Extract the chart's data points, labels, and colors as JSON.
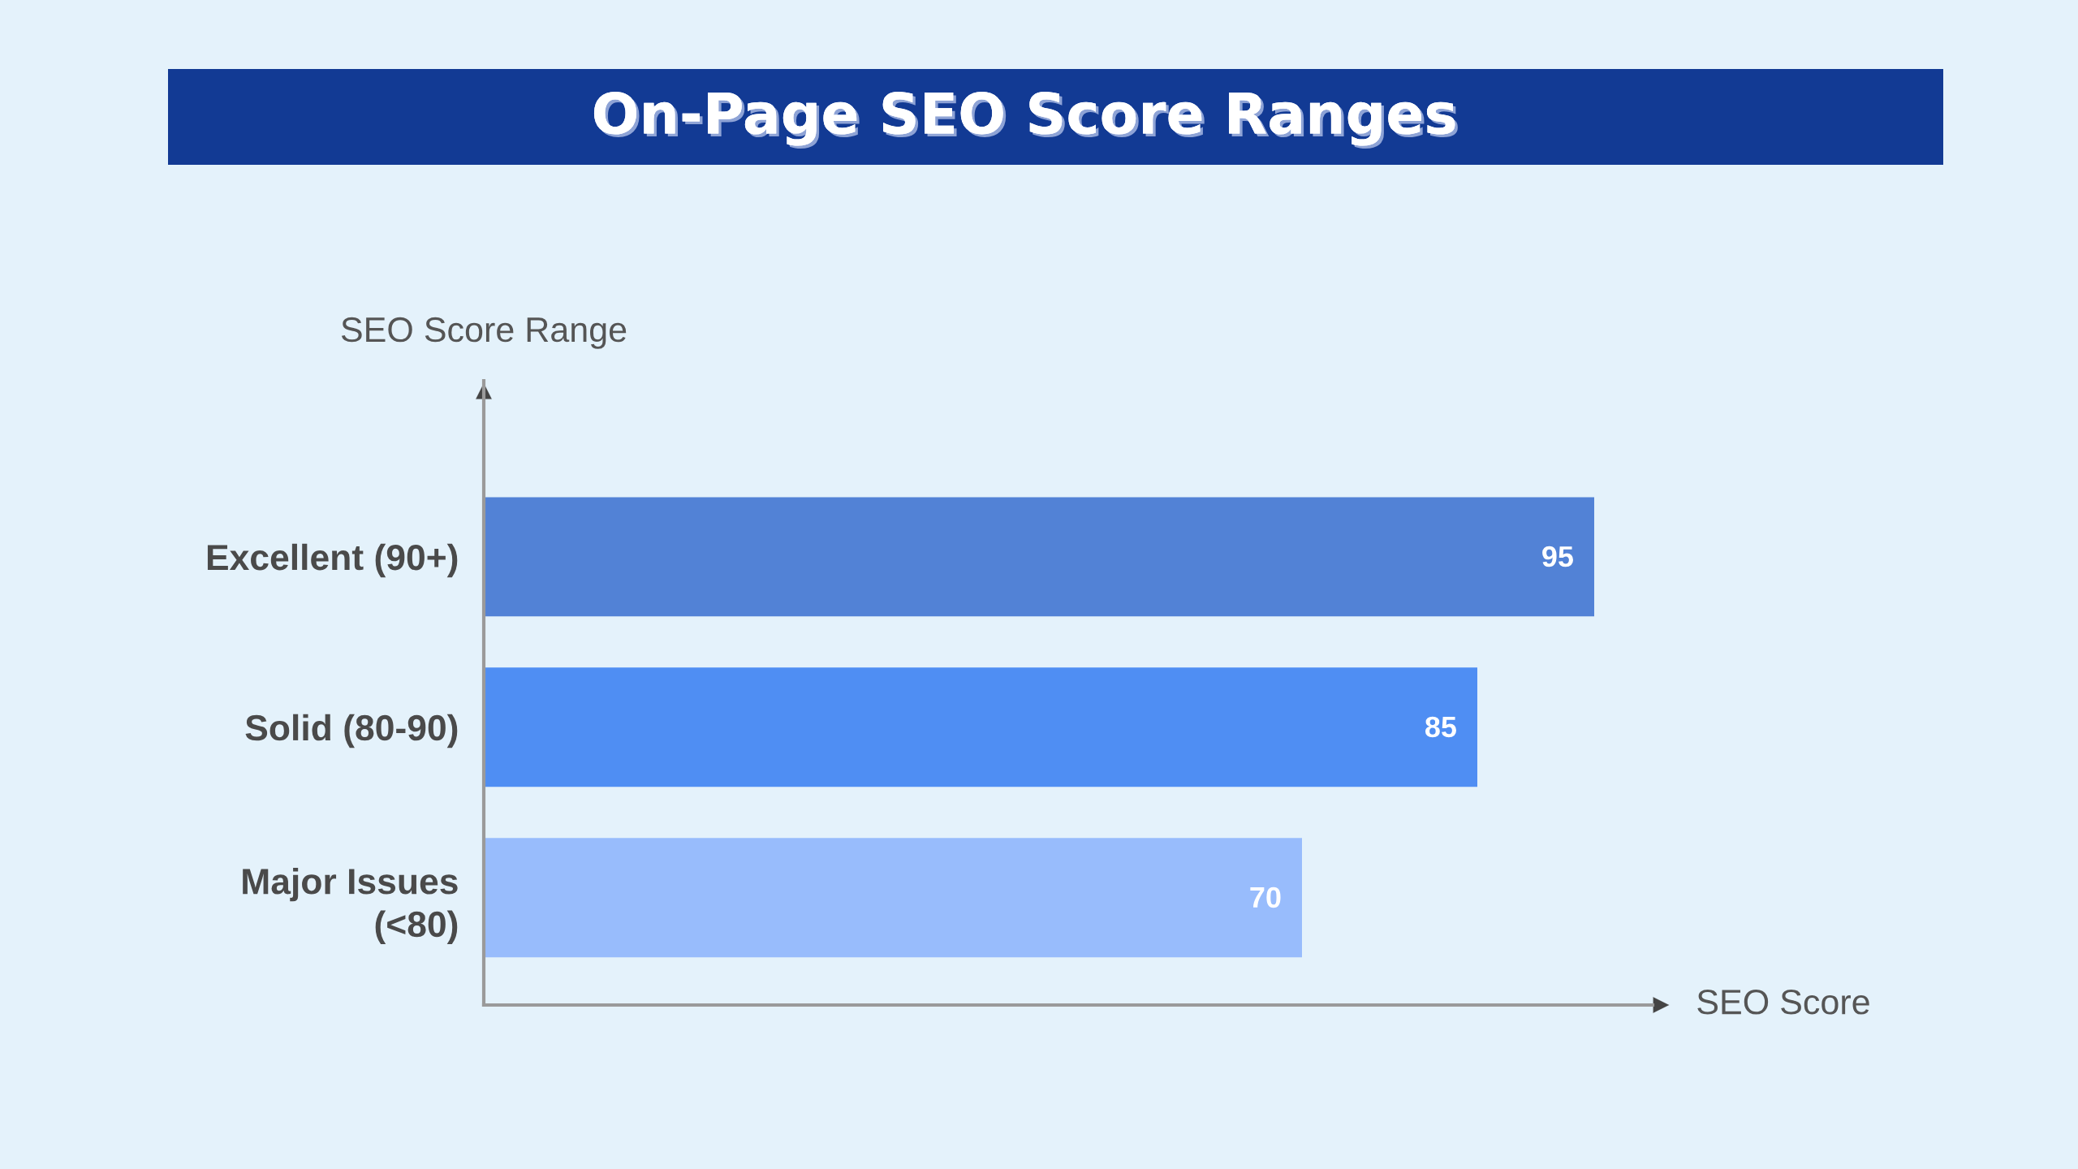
{
  "chart_data": {
    "type": "bar",
    "orientation": "horizontal",
    "title": "On-Page SEO Score Ranges",
    "xlabel": "SEO Score",
    "ylabel": "SEO Score Range",
    "categories": [
      "Excellent (90+)",
      "Solid (80-90)",
      "Major Issues\n(<80)"
    ],
    "values": [
      95,
      85,
      70
    ],
    "colors": [
      "#5282d6",
      "#4f8ef3",
      "#98bcfc"
    ],
    "xlim": [
      0,
      100
    ],
    "data_labels": true,
    "tick_labels": "y"
  }
}
